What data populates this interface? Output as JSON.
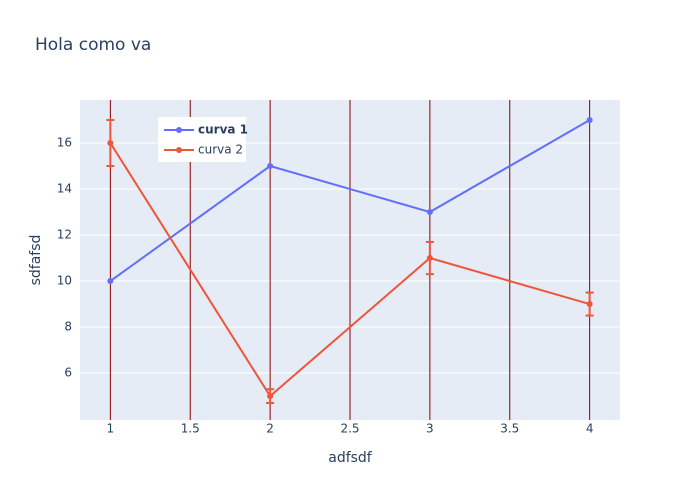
{
  "chart_data": {
    "type": "line",
    "title": "Hola como va",
    "x_label": "adfsdf",
    "y_label": "sdfafsd",
    "x": [
      1,
      2,
      3,
      4
    ],
    "series": [
      {
        "name": "curva 1",
        "color": "#636efa",
        "values": [
          10,
          15,
          13,
          17
        ]
      },
      {
        "name": "curva 2",
        "color": "#ef553b",
        "values": [
          16,
          5,
          11,
          9
        ],
        "error": [
          1,
          0.3,
          0.7,
          0.5
        ]
      }
    ],
    "xlim": [
      0.81,
      4.19
    ],
    "xticks": [
      1,
      1.5,
      2,
      2.5,
      3,
      3.5,
      4
    ],
    "ylim": [
      3.96,
      17.87
    ],
    "yticks": [
      6,
      8,
      10,
      12,
      14,
      16
    ],
    "grid": true,
    "xgrid_color": "#8b0000",
    "ygrid_color": "#ffffff",
    "plot_background": "#e5ecf6",
    "legend_position": "upper-left"
  }
}
